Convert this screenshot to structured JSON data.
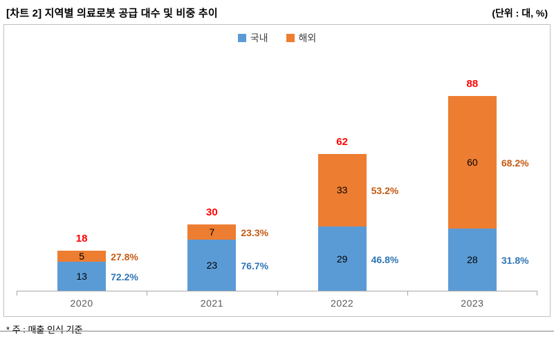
{
  "header": {
    "title": "[차트 2] 지역별 의료로봇 공급 대수 및 비중 추이",
    "unit": "(단위 : 대, %)"
  },
  "footnote": "* 주 : 매출 인식 기준",
  "chart_data": {
    "type": "bar",
    "stacked": true,
    "title": "[차트 2] 지역별 의료로봇 공급 대수 및 비중 추이",
    "unit": "(단위 : 대, %)",
    "categories": [
      "2020",
      "2021",
      "2022",
      "2023"
    ],
    "series": [
      {
        "name": "국내",
        "color": "#5B9BD5",
        "values": [
          13,
          23,
          29,
          28
        ],
        "pct_labels": [
          "72.2%",
          "76.7%",
          "46.8%",
          "31.8%"
        ],
        "pct_color": "#2E75B6"
      },
      {
        "name": "해외",
        "color": "#ED7D31",
        "values": [
          5,
          7,
          33,
          60
        ],
        "pct_labels": [
          "27.8%",
          "23.3%",
          "53.2%",
          "68.2%"
        ],
        "pct_color": "#C55A11"
      }
    ],
    "totals": [
      18,
      30,
      62,
      88
    ],
    "total_color": "#FF0000",
    "legend_position": "top",
    "grid": false,
    "ylim": [
      0,
      95
    ]
  }
}
